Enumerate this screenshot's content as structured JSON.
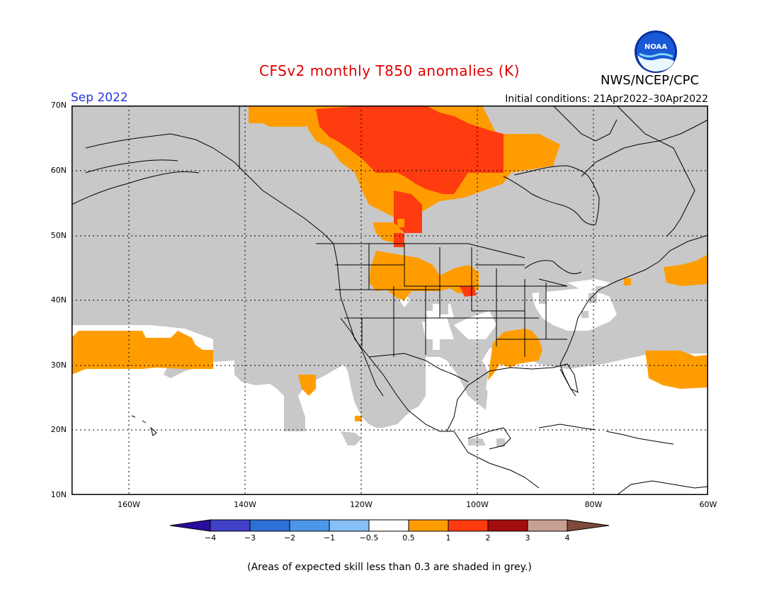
{
  "title": "CFSv2 monthly T850 anomalies (K)",
  "org_label": "NWS/NCEP/CPC",
  "logo_text": "NOAA",
  "month_label": "Sep 2022",
  "initial_conditions": "Initial conditions: 21Apr2022–30Apr2022",
  "footnote": "(Areas of expected skill less than 0.3 are shaded in grey.)",
  "lat_labels": [
    "70N",
    "60N",
    "50N",
    "40N",
    "30N",
    "20N",
    "10N"
  ],
  "lon_labels": [
    "160W",
    "140W",
    "120W",
    "100W",
    "80W",
    "60W"
  ],
  "colorbar": {
    "labels": [
      "−4",
      "−3",
      "−2",
      "−1",
      "−0.5",
      "0.5",
      "1",
      "2",
      "3",
      "4"
    ],
    "colors": [
      "#2a0c9e",
      "#4040c8",
      "#2f6fd8",
      "#4d97ea",
      "#86c0f4",
      "#ffffff",
      "#ff9d00",
      "#ff3b10",
      "#a30d0d",
      "#c8a090",
      "#7e4a3c"
    ]
  },
  "legend_colors": {
    "low_skill_grey": "#c8c8c8",
    "anom_0_5_to_1": "#ff9d00",
    "anom_1_to_2": "#ff3b10"
  }
}
